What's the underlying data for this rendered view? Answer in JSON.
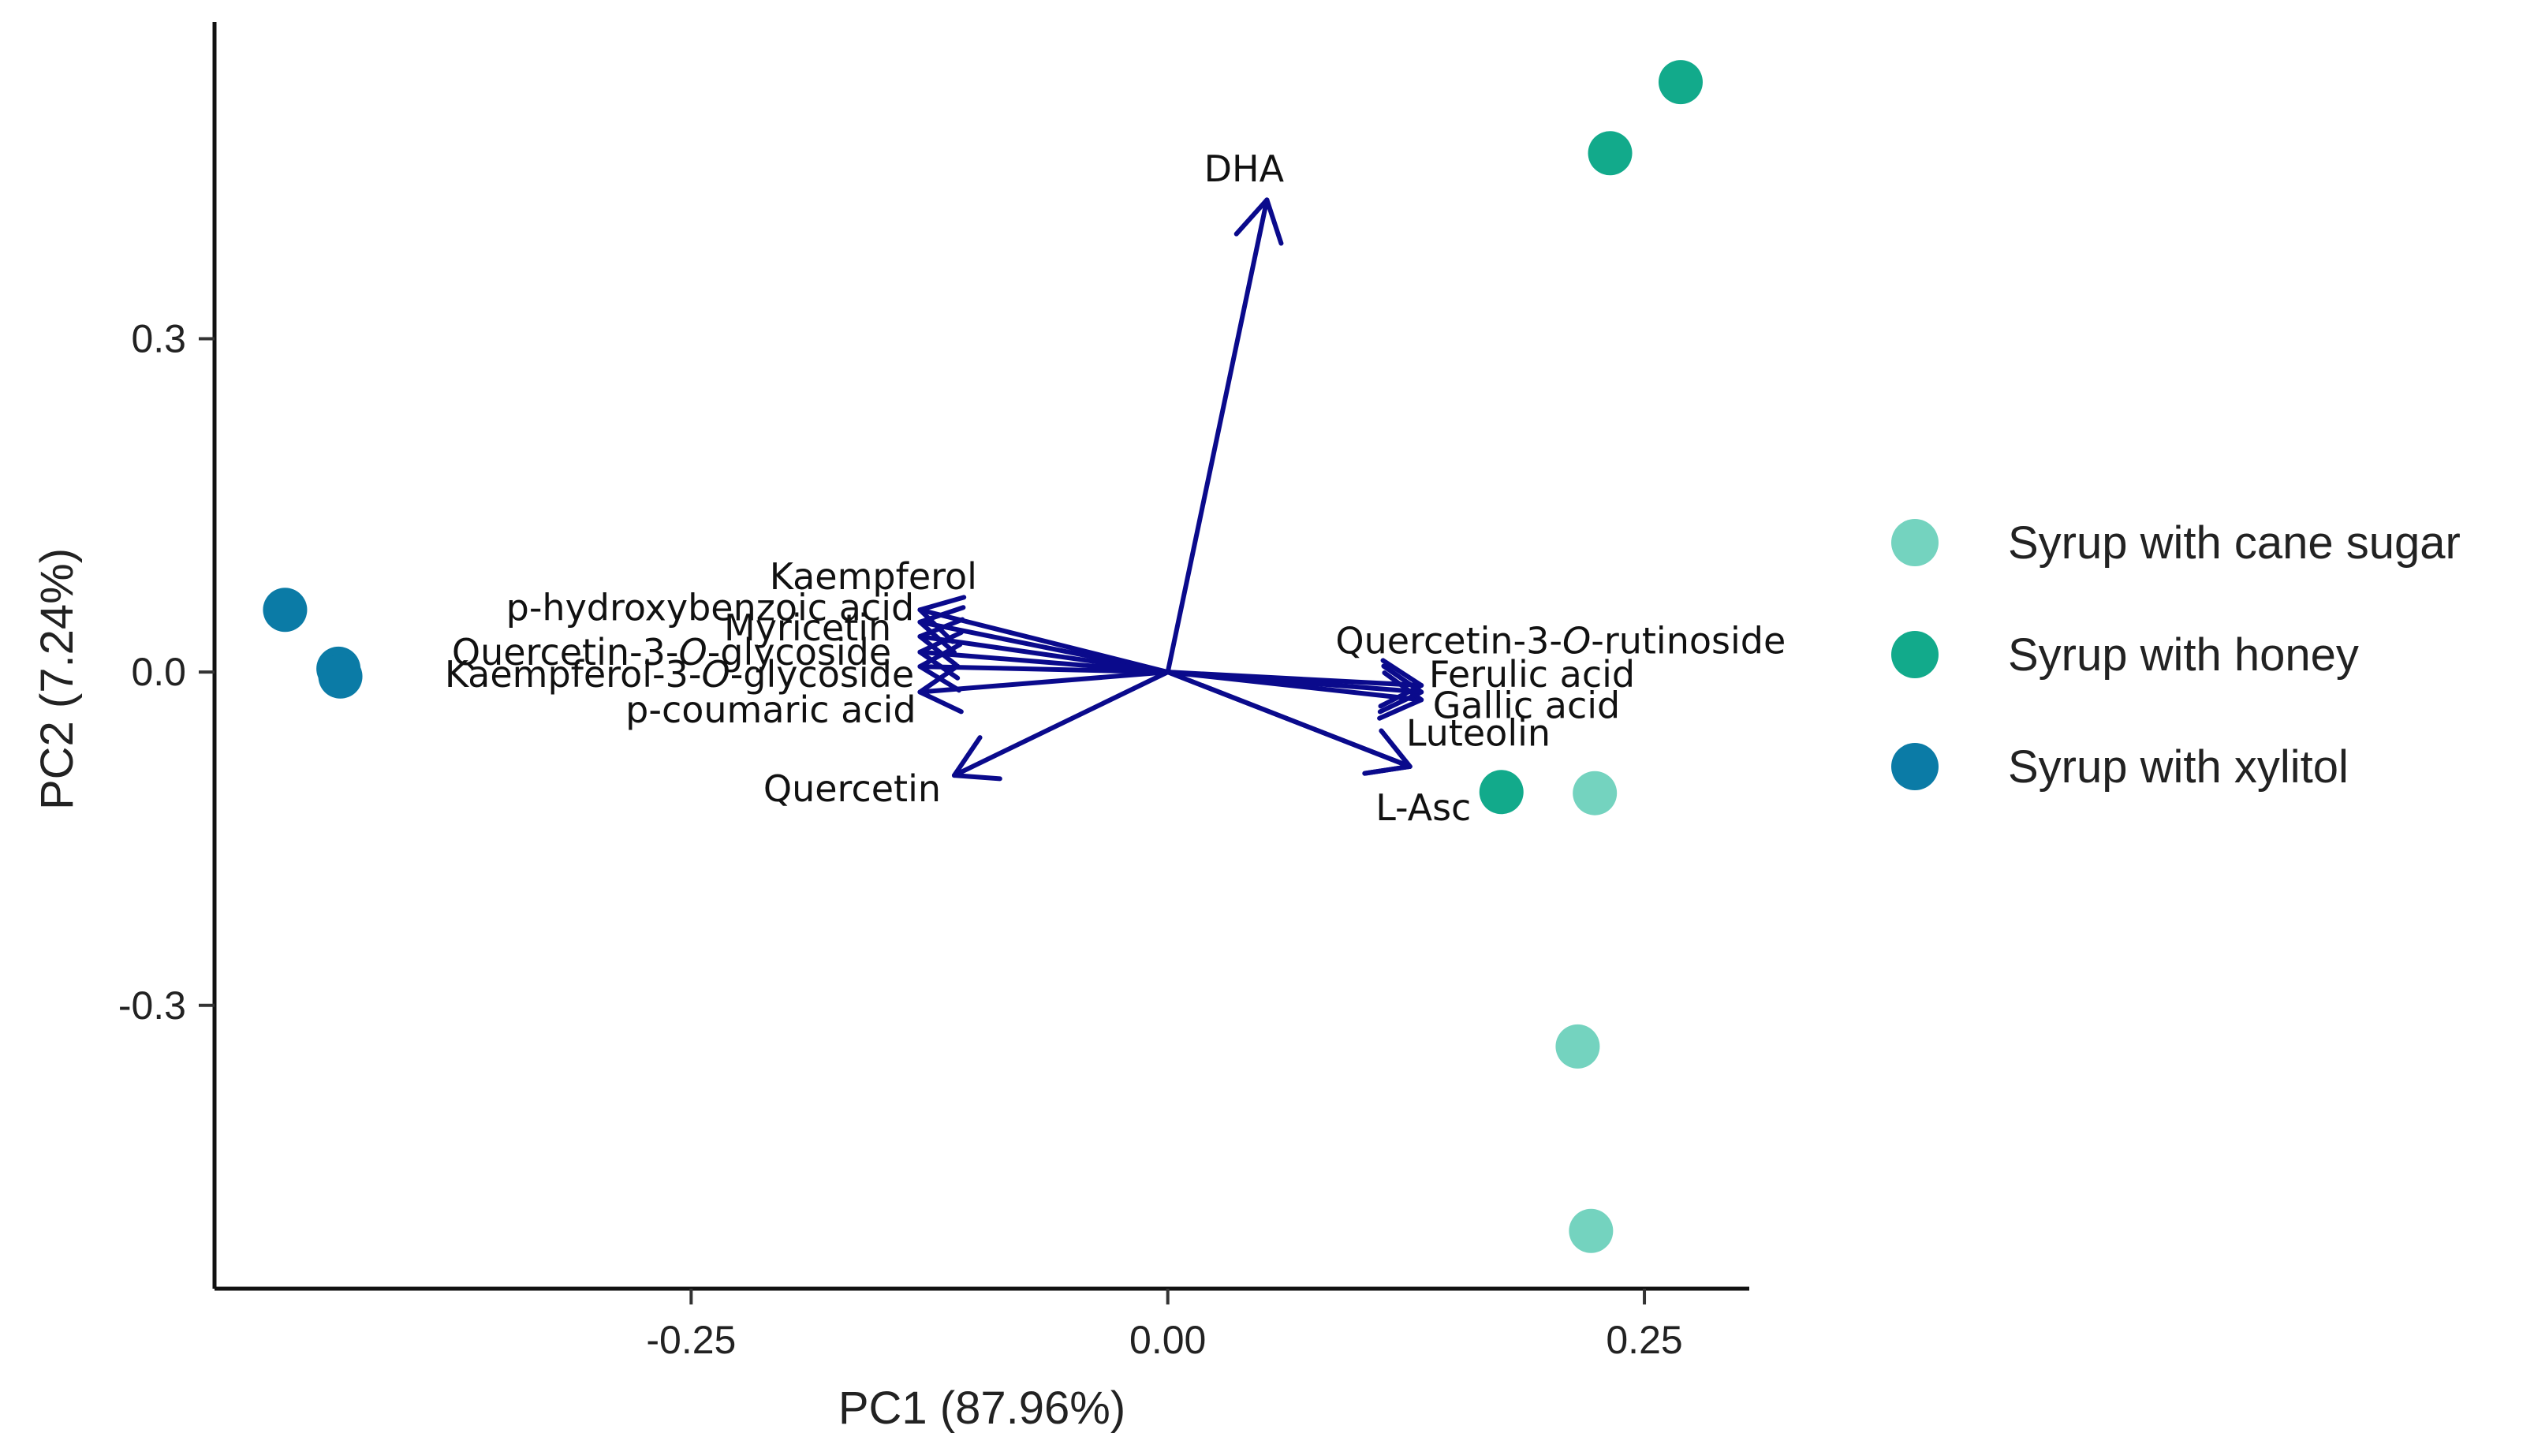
{
  "chart_data": {
    "type": "scatter",
    "subtype": "pca-biplot",
    "title": "",
    "xlabel": "PC1 (87.96%)",
    "ylabel": "PC2 (7.24%)",
    "xlim": [
      -0.5,
      0.305
    ],
    "ylim": [
      -0.555,
      0.585
    ],
    "xticks": [
      {
        "value": -0.25,
        "label": "-0.25"
      },
      {
        "value": 0.0,
        "label": "0.00"
      },
      {
        "value": 0.25,
        "label": "0.25"
      }
    ],
    "yticks": [
      {
        "value": 0.3,
        "label": "0.3"
      },
      {
        "value": 0.0,
        "label": "0.0"
      },
      {
        "value": -0.3,
        "label": "-0.3"
      }
    ],
    "grid": false,
    "legend_position": "right",
    "series": [
      {
        "name": "Syrup with cane sugar",
        "color": "#74d3bf",
        "points": [
          {
            "x": 0.224,
            "y": -0.109
          },
          {
            "x": 0.215,
            "y": -0.337
          },
          {
            "x": 0.222,
            "y": -0.503
          }
        ]
      },
      {
        "name": "Syrup with honey",
        "color": "#12aa8b",
        "points": [
          {
            "x": 0.269,
            "y": 0.531
          },
          {
            "x": 0.232,
            "y": 0.467
          },
          {
            "x": 0.175,
            "y": -0.108
          }
        ]
      },
      {
        "name": "Syrup with xylitol",
        "color": "#0b7ba6",
        "points": [
          {
            "x": -0.463,
            "y": 0.056
          },
          {
            "x": -0.435,
            "y": 0.003
          },
          {
            "x": -0.434,
            "y": -0.004
          }
        ]
      }
    ],
    "loadings": {
      "color": "#0a0a8c",
      "origin": {
        "x": 0.0,
        "y": 0.0
      },
      "vectors": [
        {
          "name": "DHA",
          "x": 0.052,
          "y": 0.425,
          "label_x": 0.04,
          "label_y": 0.453,
          "anchor": "middle",
          "parts": [
            {
              "t": "DHA"
            }
          ]
        },
        {
          "name": "Kaempferol",
          "x": -0.13,
          "y": 0.056,
          "label_x": -0.1,
          "label_y": 0.086,
          "anchor": "end",
          "parts": [
            {
              "t": "Kaempferol"
            }
          ]
        },
        {
          "name": "p-hydroxybenzoic acid",
          "x": -0.13,
          "y": 0.045,
          "label_x": -0.133,
          "label_y": 0.058,
          "anchor": "end",
          "parts": [
            {
              "t": "p-hydroxybenzoic acid"
            }
          ]
        },
        {
          "name": "Myricetin",
          "x": -0.13,
          "y": 0.032,
          "label_x": -0.145,
          "label_y": 0.04,
          "anchor": "end",
          "parts": [
            {
              "t": "Myricetin"
            }
          ]
        },
        {
          "name": "Quercetin-3-O-glycoside",
          "x": -0.13,
          "y": 0.018,
          "label_x": -0.145,
          "label_y": 0.018,
          "anchor": "end",
          "parts": [
            {
              "t": "Quercetin-3-"
            },
            {
              "t": "O",
              "i": true
            },
            {
              "t": "-glycoside"
            }
          ]
        },
        {
          "name": "Kaempferol-3-O-glycoside",
          "x": -0.13,
          "y": 0.005,
          "label_x": -0.133,
          "label_y": -0.002,
          "anchor": "end",
          "parts": [
            {
              "t": "Kaempferol-3-"
            },
            {
              "t": "O",
              "i": true
            },
            {
              "t": "-glycoside"
            }
          ]
        },
        {
          "name": "p-coumaric acid",
          "x": -0.13,
          "y": -0.018,
          "label_x": -0.132,
          "label_y": -0.034,
          "anchor": "end",
          "parts": [
            {
              "t": "p-coumaric acid"
            }
          ]
        },
        {
          "name": "Quercetin",
          "x": -0.112,
          "y": -0.093,
          "label_x": -0.119,
          "label_y": -0.105,
          "anchor": "end",
          "parts": [
            {
              "t": "Quercetin"
            }
          ]
        },
        {
          "name": "Quercetin-3-O-rutinoside",
          "x": 0.133,
          "y": -0.012,
          "label_x": 0.088,
          "label_y": 0.028,
          "anchor": "start",
          "parts": [
            {
              "t": "Quercetin-3-"
            },
            {
              "t": "O",
              "i": true
            },
            {
              "t": "-rutinoside"
            }
          ]
        },
        {
          "name": "Ferulic acid",
          "x": 0.133,
          "y": -0.018,
          "label_x": 0.137,
          "label_y": -0.002,
          "anchor": "start",
          "parts": [
            {
              "t": "Ferulic acid"
            }
          ]
        },
        {
          "name": "Gallic acid",
          "x": 0.133,
          "y": -0.025,
          "label_x": 0.139,
          "label_y": -0.03,
          "anchor": "start",
          "parts": [
            {
              "t": "Gallic acid"
            }
          ]
        },
        {
          "name": "Luteolin",
          "x": 0.127,
          "y": -0.085,
          "label_x": 0.125,
          "label_y": -0.055,
          "anchor": "start",
          "parts": [
            {
              "t": "Luteolin"
            }
          ]
        },
        {
          "name": "L-Asc",
          "x": 0.127,
          "y": -0.085,
          "label_x": 0.109,
          "label_y": -0.122,
          "anchor": "start",
          "parts": [
            {
              "t": "L-Asc"
            }
          ]
        }
      ]
    }
  }
}
